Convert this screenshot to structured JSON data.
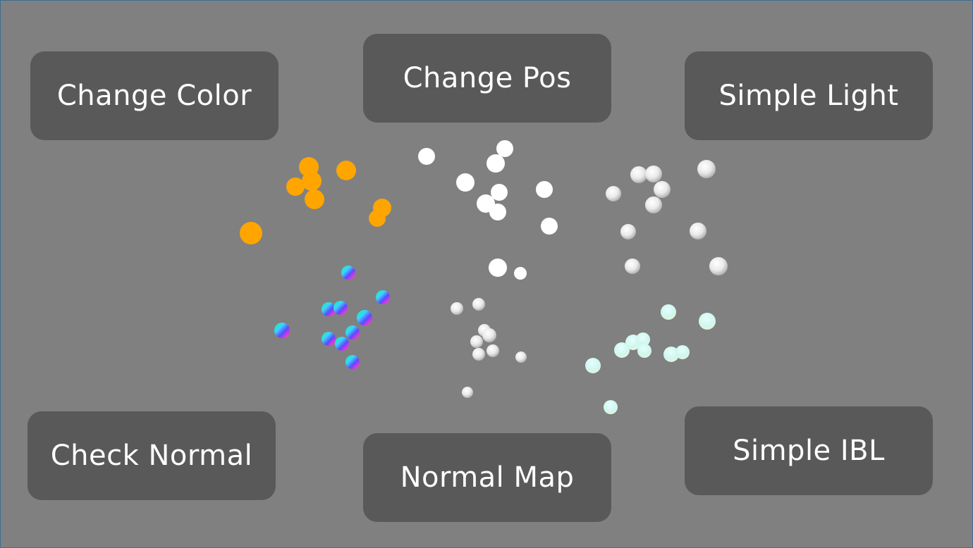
{
  "buttons": {
    "change_color": "Change Color",
    "change_pos": "Change Pos",
    "simple_light": "Simple Light",
    "check_normal": "Check Normal",
    "normal_map": "Normal Map",
    "simple_ibl": "Simple IBL"
  },
  "colors": {
    "background": "#808080",
    "button_bg": "#595959",
    "button_text": "#ffffff",
    "orange_sphere": "#ffa500",
    "white_sphere": "#ffffff",
    "lit_sphere": "#d8d8d8",
    "ibl_sphere": "#d4fbf5"
  }
}
